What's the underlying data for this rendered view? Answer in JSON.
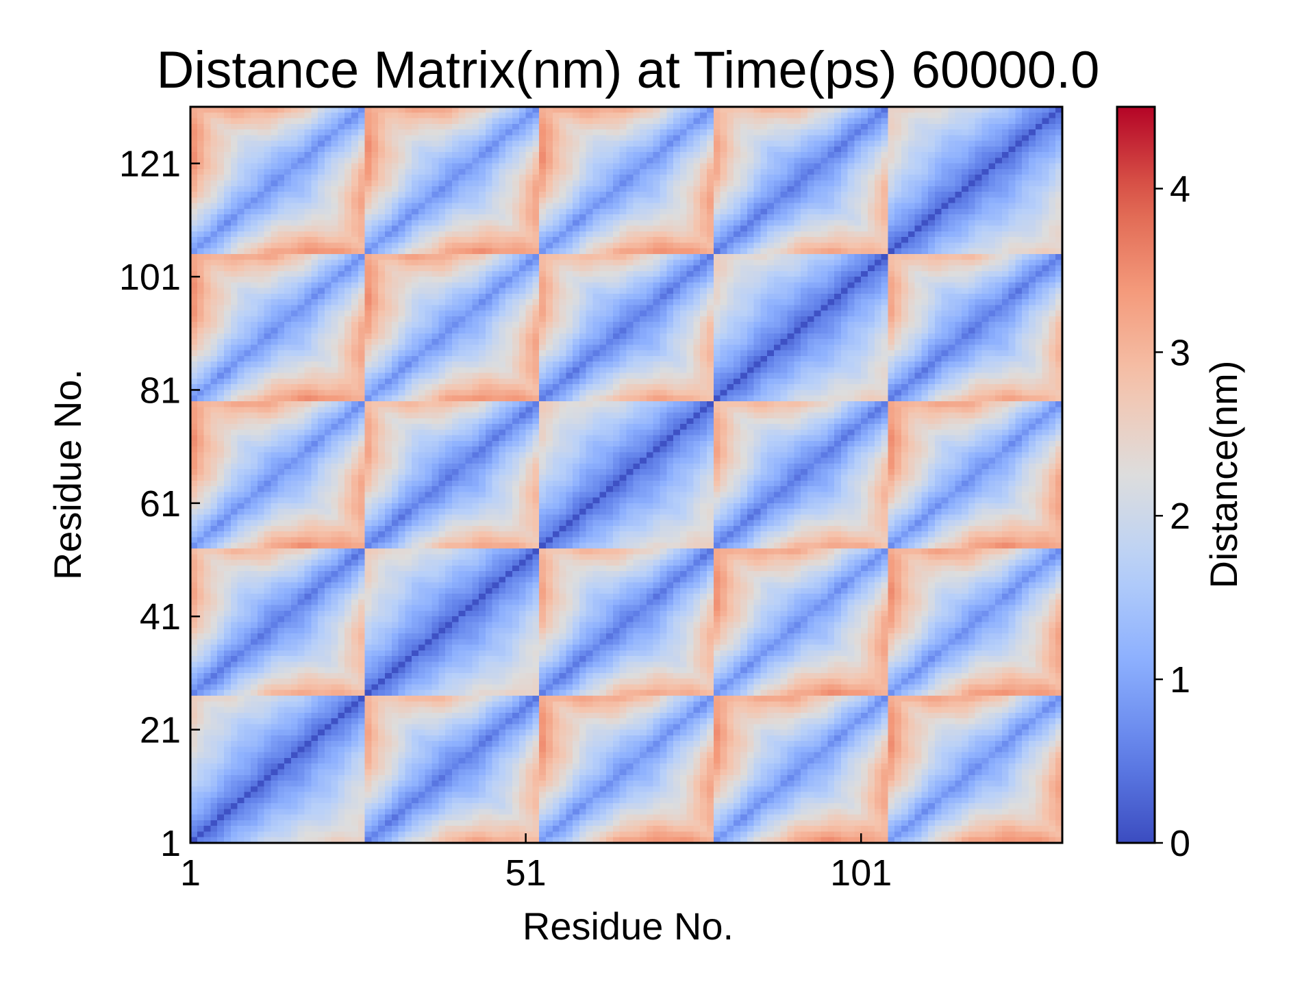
{
  "chart_data": {
    "type": "heatmap",
    "title": "Distance Matrix(nm) at Time(ps) 60000.0",
    "xlabel": "Residue No.",
    "ylabel": "Residue No.",
    "x_ticks": [
      1,
      51,
      101
    ],
    "y_ticks": [
      1,
      21,
      41,
      61,
      81,
      101,
      121
    ],
    "xlim": [
      1,
      131
    ],
    "ylim": [
      1,
      131
    ],
    "n_residues": 130,
    "colorscale": "coolwarm",
    "colorbar": {
      "label": "Distance(nm)",
      "ticks": [
        0,
        1,
        2,
        3,
        4
      ],
      "range": [
        0,
        4.5
      ]
    },
    "segment_boundaries": [
      1,
      27,
      53,
      79,
      105,
      131
    ],
    "grid": false,
    "legend": "none"
  }
}
